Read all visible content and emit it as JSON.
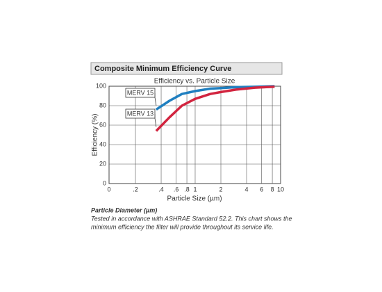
{
  "header": {
    "title": "Composite Minimum Efficiency Curve"
  },
  "chart_data": {
    "type": "line",
    "title": "Efficiency vs. Particle Size",
    "xlabel": "Particle Size (µm)",
    "ylabel": "Efficiency (%)",
    "xscale": "log",
    "grid": true,
    "xlim": [
      0,
      10
    ],
    "xticks": [
      0,
      {
        "value": 0.2,
        "label": ".2"
      },
      {
        "value": 0.4,
        "label": ".4"
      },
      {
        "value": 0.6,
        "label": ".6"
      },
      {
        "value": 0.8,
        "label": ".8"
      },
      1,
      2,
      4,
      6,
      8,
      10
    ],
    "ylim": [
      0,
      100
    ],
    "yticks": [
      0,
      20,
      40,
      60,
      80,
      100
    ],
    "x": [
      0.35,
      0.5,
      0.7,
      1,
      1.5,
      2,
      3,
      5,
      8.5
    ],
    "series": [
      {
        "name": "MERV 15",
        "color": "#1f7fc0",
        "values": [
          76,
          85,
          92,
          95,
          97.5,
          98,
          99,
          99.5,
          100
        ]
      },
      {
        "name": "MERV 13",
        "color": "#d2243f",
        "values": [
          54,
          68,
          80,
          87,
          92,
          94,
          96.5,
          98.5,
          99.5
        ]
      }
    ]
  },
  "footer": {
    "heading": "Particle Diameter (µm)",
    "note": [
      "Tested in accordance with ASHRAE Standard 52.2. This chart shows the",
      "minimum efficiency the filter will provide throughout its service life."
    ]
  }
}
